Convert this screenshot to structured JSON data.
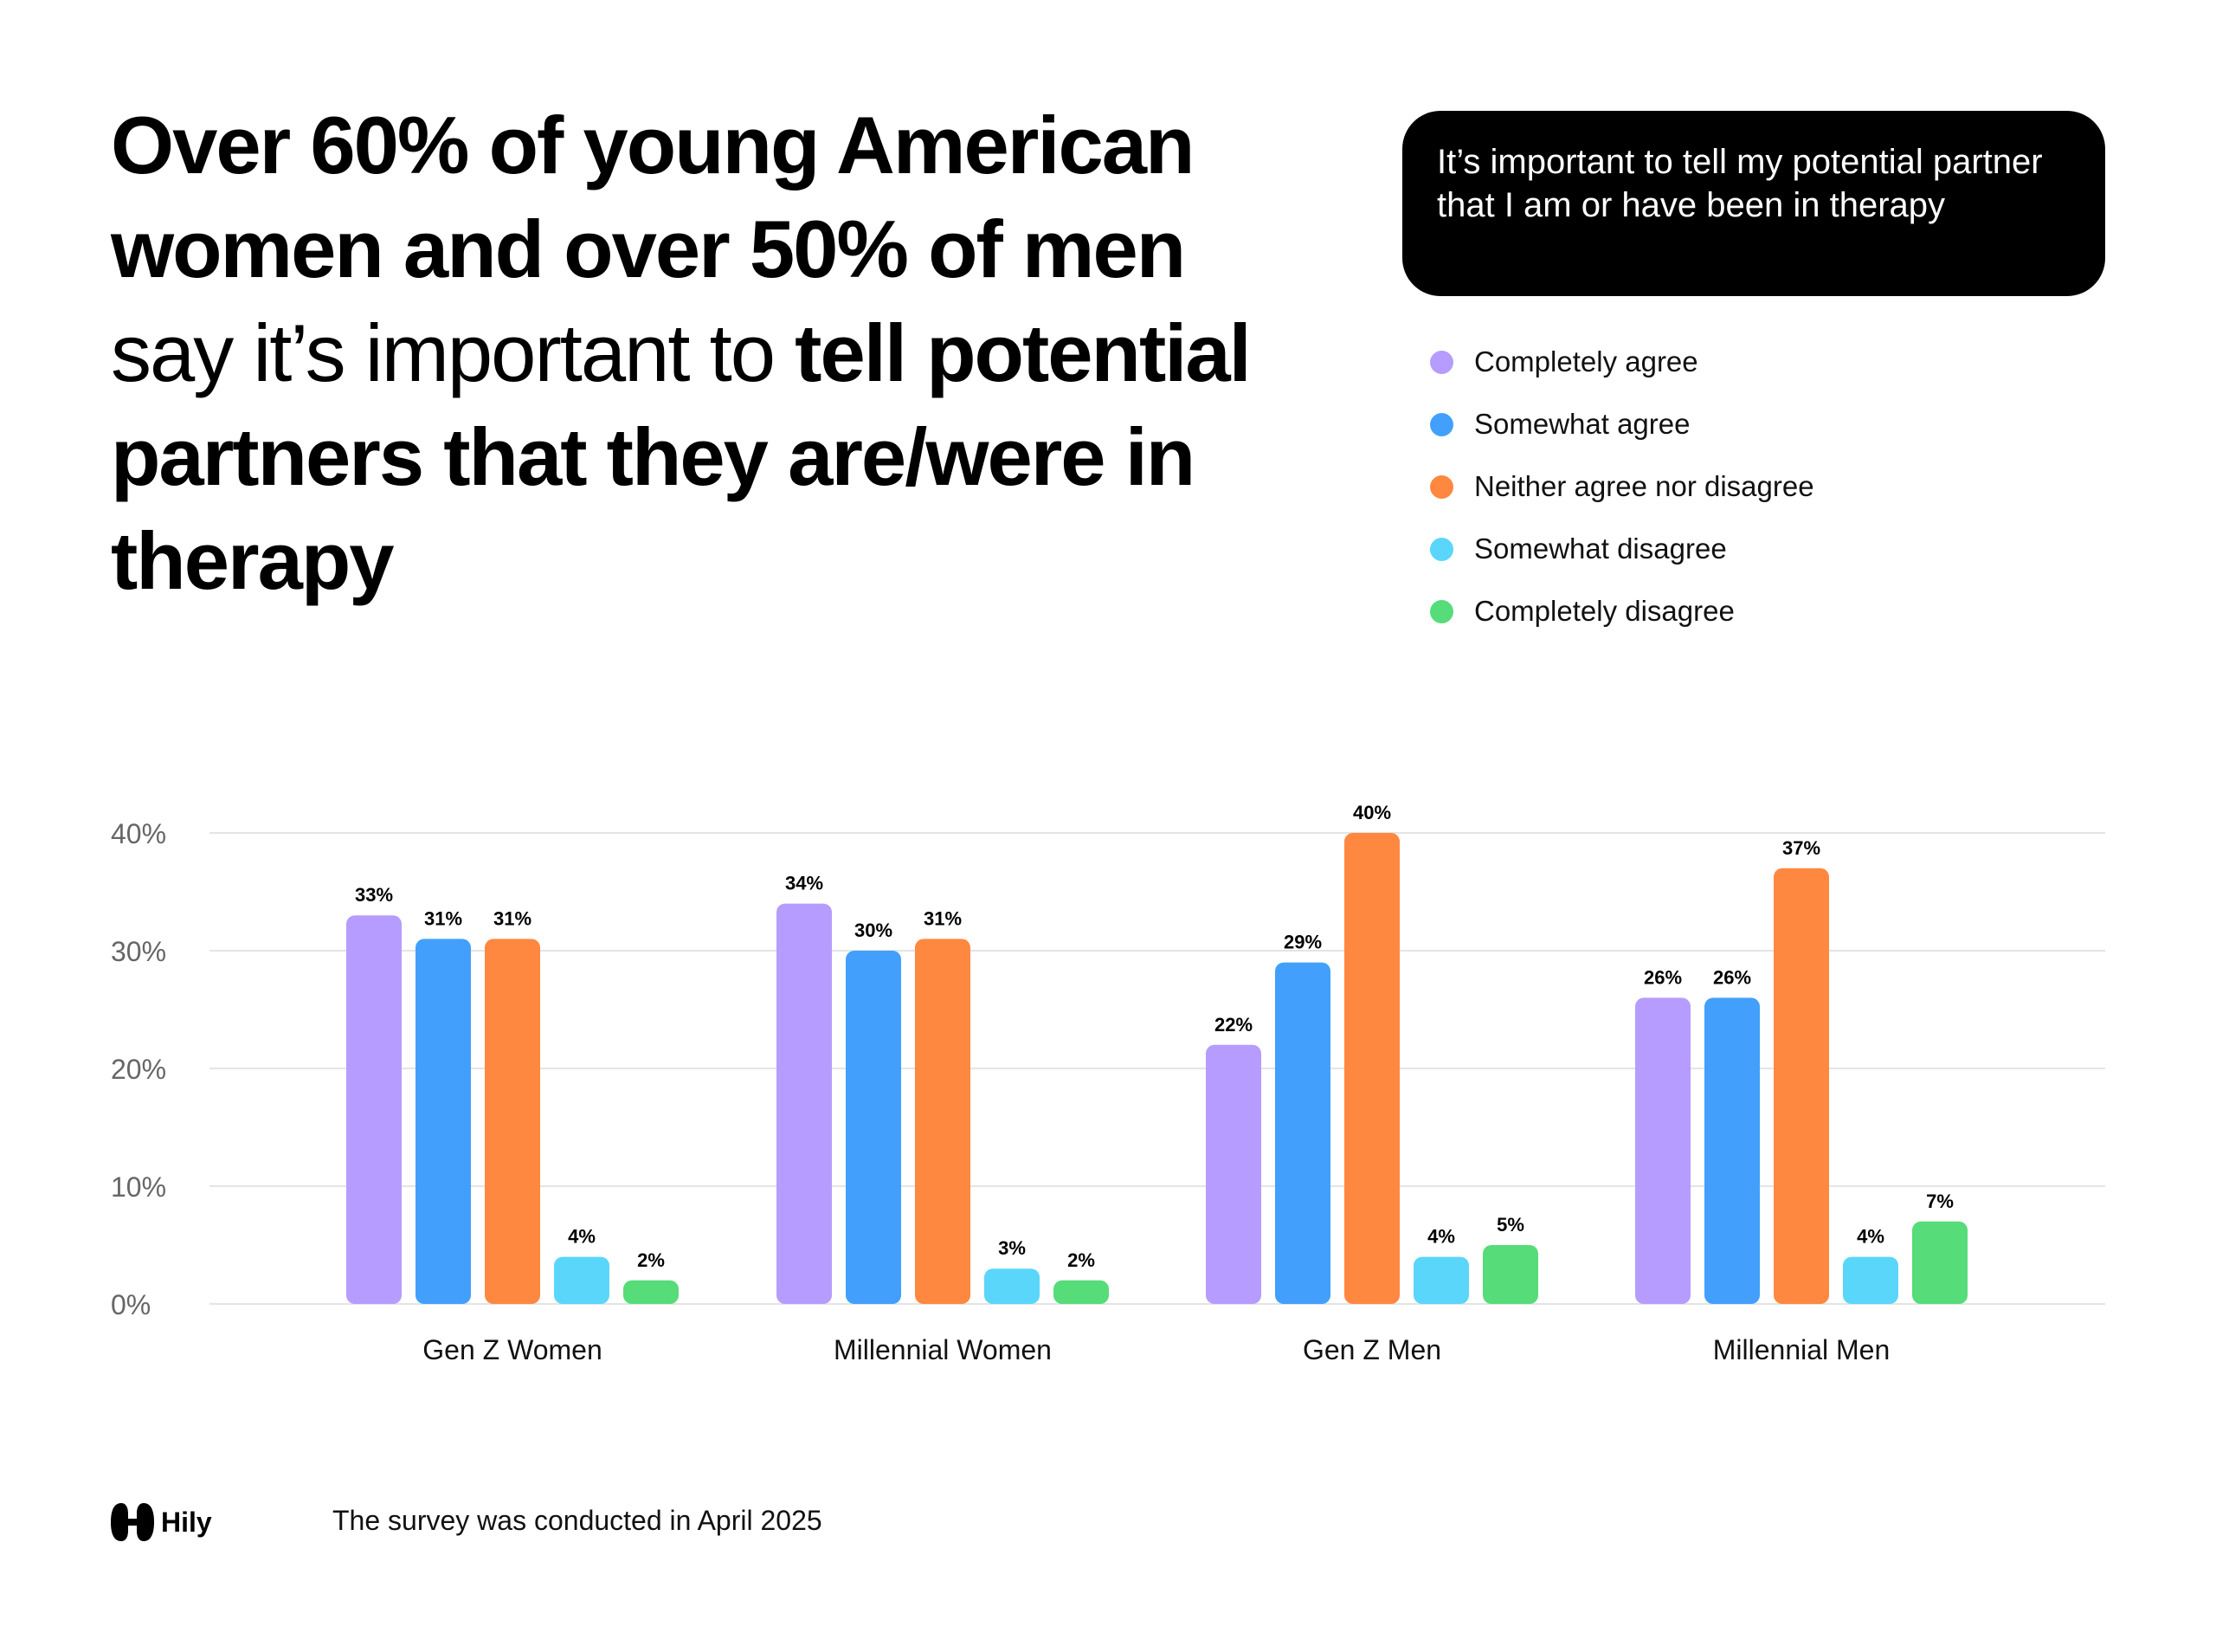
{
  "headline": {
    "part1": "Over 60% of young American women and over 50% of men",
    "part2": " say it’s important to ",
    "part3": "tell potential partners that they are/were in therapy"
  },
  "question": "It’s important to tell my potential partner that I am or have been in therapy",
  "footer": {
    "logo_text": "Hily",
    "note": "The survey was conducted in April 2025"
  },
  "chart_data": {
    "type": "bar",
    "categories": [
      "Gen Z Women",
      "Millennial Women",
      "Gen Z Men",
      "Millennial Men"
    ],
    "series": [
      {
        "name": "Completely  agree",
        "color": "#b69cff",
        "values": [
          33,
          34,
          22,
          26
        ],
        "labels": [
          "33%",
          "34%",
          "22%",
          "26%"
        ]
      },
      {
        "name": "Somewhat agree",
        "color": "#42a0fc",
        "values": [
          31,
          30,
          29,
          26
        ],
        "labels": [
          "31%",
          "30%",
          "29%",
          "26%"
        ]
      },
      {
        "name": "Neither agree nor disagree",
        "color": "#ff8840",
        "values": [
          31,
          31,
          40,
          37
        ],
        "labels": [
          "31%",
          "31%",
          "40%",
          "37%"
        ]
      },
      {
        "name": "Somewhat disagree",
        "color": "#5ad6fb",
        "values": [
          4,
          3,
          4,
          4
        ],
        "labels": [
          "4%",
          "3%",
          "4%",
          "4%"
        ]
      },
      {
        "name": "Completely disagree",
        "color": "#56dc79",
        "values": [
          2,
          2,
          5,
          7
        ],
        "labels": [
          "2%",
          "2%",
          "5%",
          "7%"
        ]
      }
    ],
    "y_ticks": [
      0,
      10,
      20,
      30,
      40
    ],
    "y_tick_labels": [
      "0%",
      "10%",
      "20%",
      "30%",
      "40%"
    ],
    "ylim": [
      0,
      40
    ],
    "grid": true,
    "legend": "top-right"
  }
}
